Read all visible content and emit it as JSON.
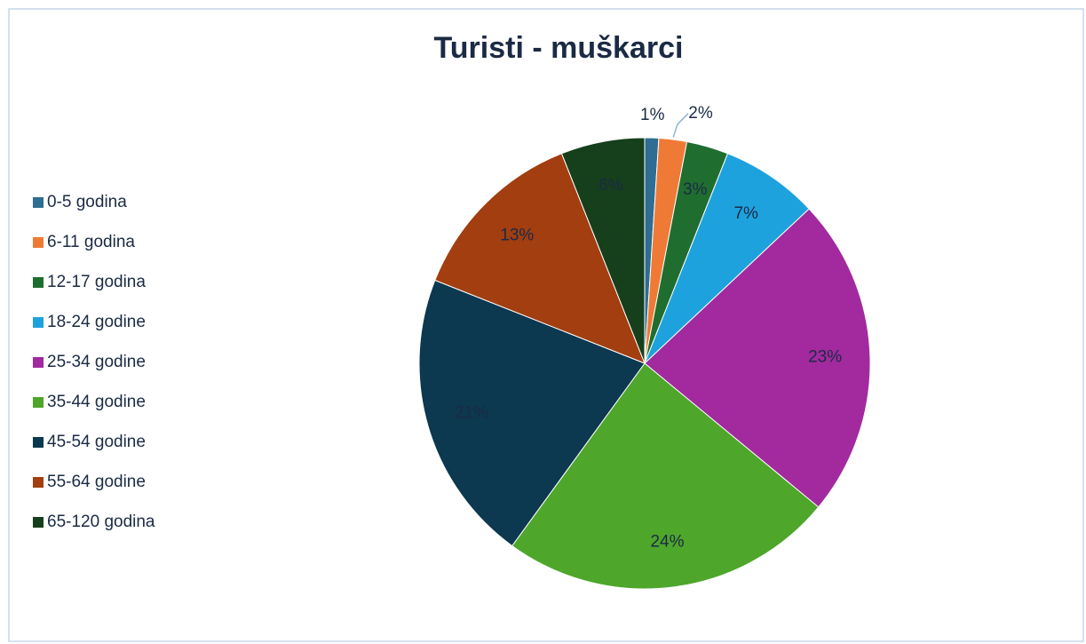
{
  "chart_data": {
    "type": "pie",
    "title": "Turisti - muškarci",
    "categories": [
      "0-5 godina",
      "6-11 godina",
      "12-17 godina",
      "18-24 godine",
      "25-34 godine",
      "35-44 godine",
      "45-54 godine",
      "55-64 godine",
      "65-120 godina"
    ],
    "values": [
      1,
      2,
      3,
      7,
      23,
      24,
      21,
      13,
      6
    ],
    "value_labels": [
      "1%",
      "2%",
      "3%",
      "7%",
      "23%",
      "24%",
      "21%",
      "13%",
      "6%"
    ],
    "colors": [
      "#2f6d92",
      "#ef7a35",
      "#1f6e30",
      "#1ea2de",
      "#a22a9e",
      "#4ea62b",
      "#0c3850",
      "#a23e10",
      "#163f1c"
    ],
    "legend": "left"
  }
}
